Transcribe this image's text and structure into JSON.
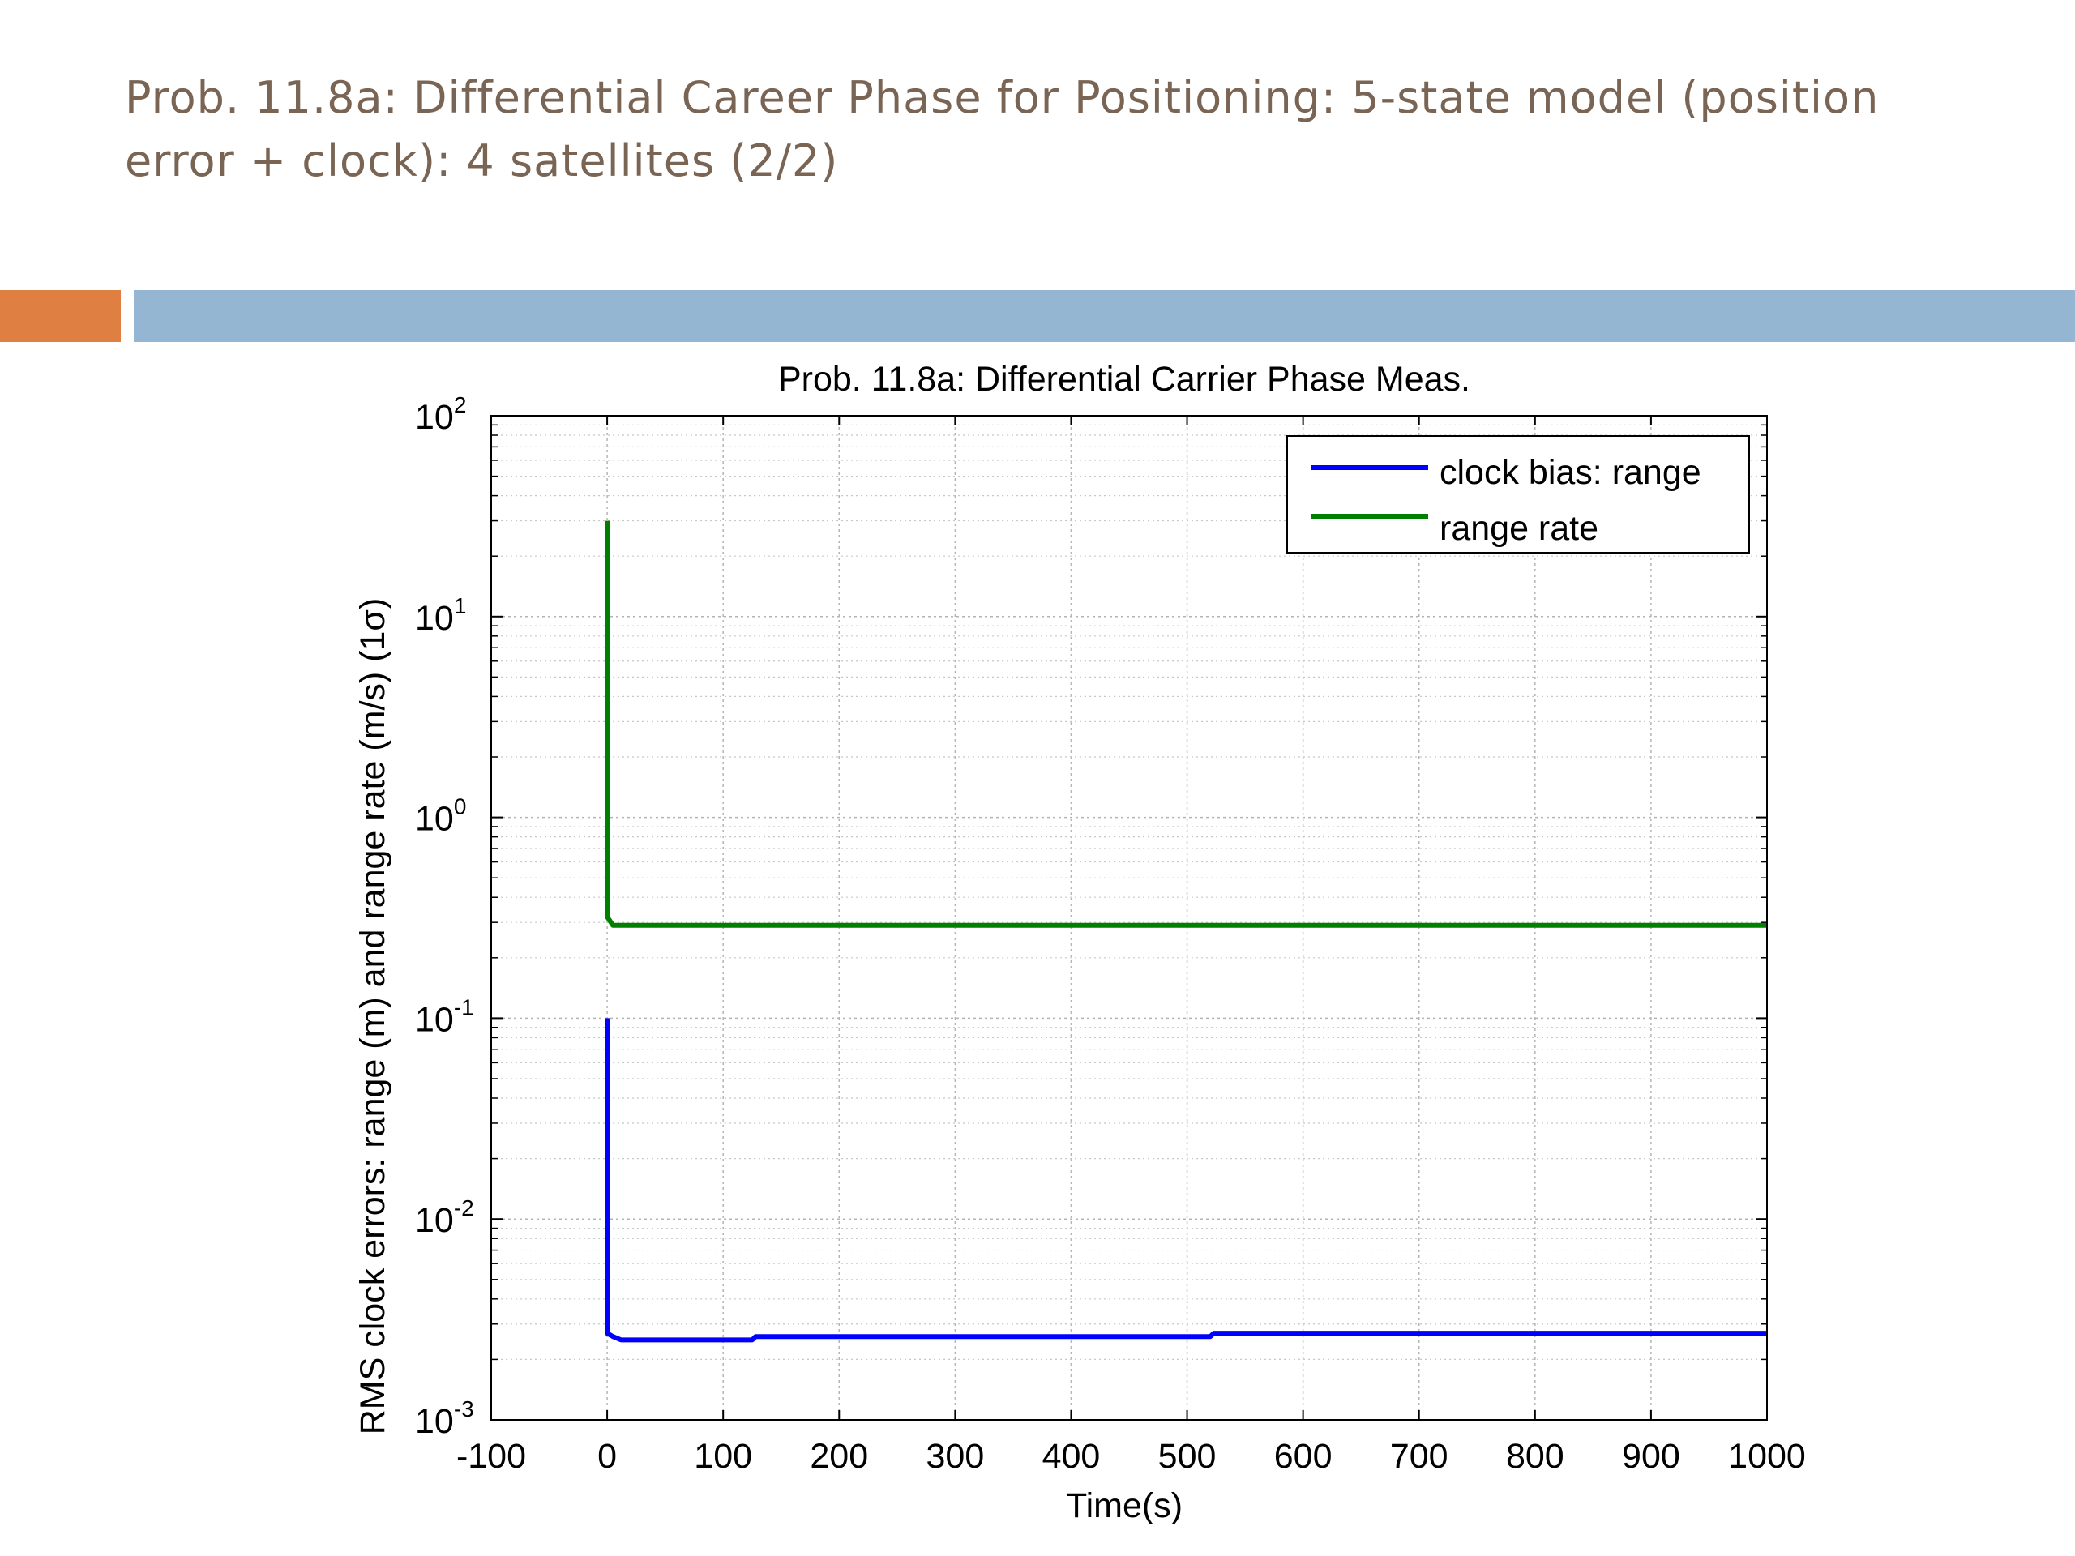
{
  "slide": {
    "title": "Prob. 11.8a: Differential Career Phase for Positioning: 5-state model (position error + clock): 4 satellites (2/2)"
  },
  "colors": {
    "title_text": "#7a6555",
    "accent_orange": "#df8042",
    "accent_blue": "#94b6d2",
    "series_clock_bias": "#0000ff",
    "series_range_rate": "#007f00"
  },
  "chart_data": {
    "type": "line",
    "title": "Prob. 11.8a: Differential Carrier Phase Meas.",
    "xlabel": "Time(s)",
    "ylabel": "RMS clock errors: range (m) and range rate (m/s) (1σ)",
    "xlim": [
      -100,
      1000
    ],
    "ylim": [
      0.001,
      100
    ],
    "yscale": "log",
    "grid": true,
    "legend_position": "top-right",
    "x_ticks": [
      "-100",
      "0",
      "100",
      "200",
      "300",
      "400",
      "500",
      "600",
      "700",
      "800",
      "900",
      "1000"
    ],
    "y_ticks": [
      {
        "base": "10",
        "exp": "-3"
      },
      {
        "base": "10",
        "exp": "-2"
      },
      {
        "base": "10",
        "exp": "-1"
      },
      {
        "base": "10",
        "exp": "0"
      },
      {
        "base": "10",
        "exp": "1"
      },
      {
        "base": "10",
        "exp": "2"
      }
    ],
    "series": [
      {
        "name": "clock bias: range",
        "color": "#0000ff",
        "points": [
          [
            0,
            0.1
          ],
          [
            0,
            0.0027
          ],
          [
            5,
            0.0026
          ],
          [
            12,
            0.0025
          ],
          [
            125,
            0.0025
          ],
          [
            128,
            0.0026
          ],
          [
            520,
            0.0026
          ],
          [
            523,
            0.0027
          ],
          [
            1000,
            0.0027
          ]
        ]
      },
      {
        "name": "range rate",
        "color": "#007f00",
        "points": [
          [
            0,
            30
          ],
          [
            0,
            0.32
          ],
          [
            5,
            0.29
          ],
          [
            1000,
            0.29
          ]
        ]
      }
    ]
  }
}
